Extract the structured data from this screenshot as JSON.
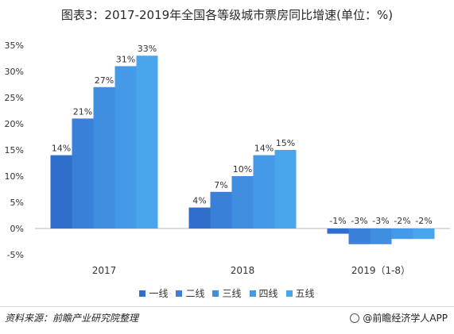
{
  "title": "图表3：2017-2019年全国各等级城市票房同比增速(单位：%)",
  "source": "资料来源：前瞻产业研究院整理",
  "brand": "@前瞻经济学人APP",
  "chart_data": {
    "type": "bar",
    "title": "图表3：2017-2019年全国各等级城市票房同比增速(单位：%)",
    "categories": [
      "2017",
      "2018",
      "2019（1-8）"
    ],
    "series": [
      {
        "name": "一线",
        "values": [
          14,
          4,
          -1
        ],
        "color": "#2f6fcb"
      },
      {
        "name": "二线",
        "values": [
          21,
          7,
          -3
        ],
        "color": "#3a80d8"
      },
      {
        "name": "三线",
        "values": [
          27,
          10,
          -3
        ],
        "color": "#3f8ee0"
      },
      {
        "name": "四线",
        "values": [
          31,
          14,
          -2
        ],
        "color": "#449ae6"
      },
      {
        "name": "五线",
        "values": [
          33,
          15,
          -2
        ],
        "color": "#4aa6ec"
      }
    ],
    "data_labels": [
      [
        "14%",
        "21%",
        "27%",
        "31%",
        "33%"
      ],
      [
        "4%",
        "7%",
        "10%",
        "14%",
        "15%"
      ],
      [
        "-1%",
        "-3%",
        "-3%",
        "-2%",
        "-2%"
      ]
    ],
    "yticks": [
      "35%",
      "30%",
      "25%",
      "20%",
      "15%",
      "10%",
      "5%",
      "0%",
      "-5%"
    ],
    "ylim": [
      -5,
      35
    ],
    "grid": false,
    "legend_position": "bottom"
  }
}
